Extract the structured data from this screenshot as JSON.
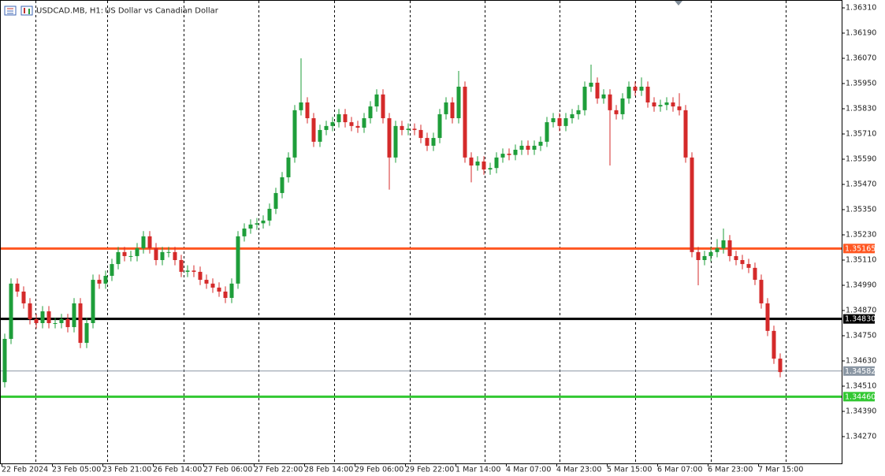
{
  "chart_data": {
    "type": "candlestick",
    "title": "USDCAD.MB, H1:",
    "subtitle": "US Dollar vs Canadian Dollar",
    "bull_color": "#1e9e3a",
    "bear_color": "#d42a2a",
    "ylim": [
      1.341425,
      1.363475
    ],
    "yticks": [
      {
        "value": 1.3631,
        "label": "1.36310"
      },
      {
        "value": 1.3619,
        "label": "1.36190"
      },
      {
        "value": 1.3607,
        "label": "1.36070"
      },
      {
        "value": 1.3595,
        "label": "1.35950"
      },
      {
        "value": 1.3583,
        "label": "1.35830"
      },
      {
        "value": 1.3571,
        "label": "1.35710"
      },
      {
        "value": 1.3559,
        "label": "1.35590"
      },
      {
        "value": 1.3547,
        "label": "1.35470"
      },
      {
        "value": 1.3535,
        "label": "1.35350"
      },
      {
        "value": 1.3523,
        "label": "1.35230"
      },
      {
        "value": 1.3511,
        "label": "1.35110"
      },
      {
        "value": 1.3499,
        "label": "1.34990"
      },
      {
        "value": 1.3487,
        "label": "1.34870"
      },
      {
        "value": 1.3475,
        "label": "1.34750"
      },
      {
        "value": 1.3463,
        "label": "1.34630"
      },
      {
        "value": 1.3451,
        "label": "1.34510"
      },
      {
        "value": 1.3439,
        "label": "1.34390"
      },
      {
        "value": 1.3427,
        "label": "1.34270"
      }
    ],
    "xticks": [
      {
        "value": 0,
        "label": "22 Feb 2024"
      },
      {
        "value": 8,
        "label": "23 Feb 05:00"
      },
      {
        "value": 16,
        "label": "23 Feb 21:00"
      },
      {
        "value": 24,
        "label": "26 Feb 14:00"
      },
      {
        "value": 32,
        "label": "27 Feb 06:00"
      },
      {
        "value": 40,
        "label": "27 Feb 22:00"
      },
      {
        "value": 48,
        "label": "28 Feb 14:00"
      },
      {
        "value": 56,
        "label": "29 Feb 06:00"
      },
      {
        "value": 64,
        "label": "29 Feb 22:00"
      },
      {
        "value": 72,
        "label": "1 Mar 14:00"
      },
      {
        "value": 80,
        "label": "4 Mar 07:00"
      },
      {
        "value": 88,
        "label": "4 Mar 23:00"
      },
      {
        "value": 96,
        "label": "5 Mar 15:00"
      },
      {
        "value": 104,
        "label": "6 Mar 07:00"
      },
      {
        "value": 112,
        "label": "6 Mar 23:00"
      },
      {
        "value": 120,
        "label": "7 Mar 15:00"
      }
    ],
    "xgrid": [
      5.4,
      16.75,
      28.9,
      40.75,
      52.75,
      64.75,
      76.6,
      88.5,
      100.5,
      112.5,
      124.4
    ],
    "levels": [
      {
        "value": 1.35165,
        "color": "#ff5722",
        "width": 3
      },
      {
        "value": 1.3483,
        "label": "1.34830",
        "color": "#000000",
        "width": 3
      },
      {
        "value": 1.34582,
        "color": "#8a96a3",
        "width": 1
      },
      {
        "value": 1.3446,
        "label": "1.34460",
        "color": "#32c832",
        "width": 3
      }
    ],
    "open": [
      1.34529,
      1.34735,
      1.34998,
      1.3496,
      1.34904,
      1.34829,
      1.3481,
      1.34866,
      1.3481,
      1.3481,
      1.34829,
      1.34791,
      1.34904,
      1.34716,
      1.3481,
      1.35016,
      1.34998,
      1.35035,
      1.35091,
      1.35148,
      1.35129,
      1.35129,
      1.35166,
      1.35223,
      1.35166,
      1.3511,
      1.35148,
      1.35148,
      1.3511,
      1.35054,
      1.3506,
      1.35054,
      1.35016,
      1.34998,
      1.34979,
      1.3496,
      1.3493,
      1.34998,
      1.35223,
      1.3526,
      1.35279,
      1.35285,
      1.35298,
      1.35354,
      1.35429,
      1.35504,
      1.35598,
      1.35823,
      1.3586,
      1.35785,
      1.35673,
      1.35729,
      1.35748,
      1.35766,
      1.35804,
      1.35766,
      1.35748,
      1.3574,
      1.35785,
      1.35841,
      1.35898,
      1.35785,
      1.35598,
      1.35748,
      1.35729,
      1.35735,
      1.35729,
      1.35691,
      1.35654,
      1.35691,
      1.35804,
      1.3586,
      1.35785,
      1.35935,
      1.35598,
      1.3556,
      1.35579,
      1.35541,
      1.35548,
      1.35598,
      1.35616,
      1.3561,
      1.35635,
      1.35654,
      1.35635,
      1.35654,
      1.35673,
      1.35766,
      1.35785,
      1.35748,
      1.35785,
      1.35804,
      1.35823,
      1.35935,
      1.35954,
      1.35879,
      1.35898,
      1.35823,
      1.35804,
      1.35879,
      1.35935,
      1.35916,
      1.35935,
      1.3586,
      1.35841,
      1.35848,
      1.3586,
      1.35841,
      1.35823,
      1.35598,
      1.35148,
      1.3511,
      1.35129,
      1.35148,
      1.35166,
      1.35204,
      1.35129,
      1.3511,
      1.35091,
      1.35073,
      1.35016,
      1.34904,
      1.34773,
      1.34641
    ],
    "high": [
      1.3476,
      1.35023,
      1.35023,
      1.34985,
      1.34929,
      1.34854,
      1.34891,
      1.34891,
      1.34835,
      1.34854,
      1.34854,
      1.34929,
      1.34929,
      1.34835,
      1.35041,
      1.35041,
      1.3506,
      1.35116,
      1.35173,
      1.35173,
      1.35154,
      1.35191,
      1.35248,
      1.35248,
      1.35191,
      1.35173,
      1.35173,
      1.35173,
      1.35135,
      1.35085,
      1.35085,
      1.35079,
      1.35041,
      1.35023,
      1.35004,
      1.34985,
      1.35023,
      1.35248,
      1.35285,
      1.35304,
      1.3531,
      1.35323,
      1.35379,
      1.35454,
      1.35529,
      1.35623,
      1.35848,
      1.3607,
      1.35885,
      1.3581,
      1.35754,
      1.35773,
      1.35791,
      1.35829,
      1.35829,
      1.35791,
      1.35773,
      1.3581,
      1.35866,
      1.35923,
      1.35923,
      1.3581,
      1.35773,
      1.35773,
      1.3576,
      1.3576,
      1.35754,
      1.35716,
      1.35716,
      1.35829,
      1.35885,
      1.35885,
      1.3601,
      1.3596,
      1.35623,
      1.35604,
      1.35604,
      1.35573,
      1.35623,
      1.35641,
      1.35641,
      1.3566,
      1.35679,
      1.35679,
      1.35679,
      1.35698,
      1.35791,
      1.3581,
      1.3581,
      1.3581,
      1.35829,
      1.35848,
      1.3596,
      1.3604,
      1.35979,
      1.35923,
      1.35923,
      1.35848,
      1.35904,
      1.3596,
      1.3596,
      1.35979,
      1.3596,
      1.35885,
      1.35873,
      1.35885,
      1.35885,
      1.35904,
      1.35848,
      1.35623,
      1.35173,
      1.35154,
      1.35173,
      1.3521,
      1.3526,
      1.35229,
      1.35154,
      1.35135,
      1.35116,
      1.35098,
      1.35041,
      1.34929,
      1.34798,
      1.34666
    ],
    "low": [
      1.34504,
      1.3471,
      1.34935,
      1.34879,
      1.34804,
      1.34785,
      1.34785,
      1.34785,
      1.34785,
      1.34785,
      1.34766,
      1.34766,
      1.34691,
      1.34691,
      1.34785,
      1.34973,
      1.34973,
      1.3501,
      1.35066,
      1.35104,
      1.35104,
      1.35104,
      1.35141,
      1.35141,
      1.35085,
      1.35085,
      1.35123,
      1.35085,
      1.35029,
      1.35029,
      1.35029,
      1.34991,
      1.34973,
      1.34954,
      1.34935,
      1.34905,
      1.34905,
      1.34973,
      1.35198,
      1.35235,
      1.35254,
      1.3526,
      1.35273,
      1.35329,
      1.35404,
      1.35479,
      1.35573,
      1.35798,
      1.3576,
      1.35648,
      1.35648,
      1.35704,
      1.35723,
      1.35741,
      1.35741,
      1.35723,
      1.35715,
      1.35715,
      1.3576,
      1.35816,
      1.3576,
      1.35445,
      1.35573,
      1.35704,
      1.35704,
      1.35704,
      1.35666,
      1.35629,
      1.35629,
      1.35666,
      1.35779,
      1.3576,
      1.3576,
      1.35573,
      1.3548,
      1.35535,
      1.35516,
      1.35516,
      1.35523,
      1.35573,
      1.35585,
      1.35585,
      1.3561,
      1.3561,
      1.3561,
      1.35629,
      1.35648,
      1.35741,
      1.35723,
      1.35723,
      1.3576,
      1.35779,
      1.35798,
      1.3591,
      1.35854,
      1.35854,
      1.3556,
      1.35779,
      1.35779,
      1.35854,
      1.35891,
      1.35891,
      1.35835,
      1.35816,
      1.35816,
      1.35823,
      1.35816,
      1.35798,
      1.35573,
      1.35123,
      1.3499,
      1.35085,
      1.35104,
      1.35123,
      1.35141,
      1.35104,
      1.35085,
      1.35066,
      1.35048,
      1.34991,
      1.34879,
      1.34748,
      1.34616,
      1.34552
    ],
    "close": [
      1.34735,
      1.34998,
      1.3496,
      1.34904,
      1.34829,
      1.3481,
      1.34866,
      1.3481,
      1.3481,
      1.34829,
      1.34791,
      1.34904,
      1.34716,
      1.3481,
      1.35016,
      1.34998,
      1.35035,
      1.35091,
      1.35148,
      1.35129,
      1.35129,
      1.35166,
      1.35223,
      1.35166,
      1.3511,
      1.35148,
      1.35148,
      1.3511,
      1.35054,
      1.3506,
      1.35054,
      1.35016,
      1.34998,
      1.34979,
      1.3496,
      1.3493,
      1.34998,
      1.35223,
      1.3526,
      1.35279,
      1.35285,
      1.35298,
      1.35354,
      1.35429,
      1.35504,
      1.35598,
      1.35823,
      1.3586,
      1.35785,
      1.35673,
      1.35729,
      1.35748,
      1.35766,
      1.35804,
      1.35766,
      1.35748,
      1.3574,
      1.35785,
      1.35841,
      1.35898,
      1.35785,
      1.35598,
      1.35748,
      1.35729,
      1.35735,
      1.35729,
      1.35691,
      1.35654,
      1.35691,
      1.35804,
      1.3586,
      1.35785,
      1.35935,
      1.35598,
      1.3556,
      1.35579,
      1.35541,
      1.35548,
      1.35598,
      1.35616,
      1.3561,
      1.35635,
      1.35654,
      1.35635,
      1.35654,
      1.35673,
      1.35766,
      1.35785,
      1.35748,
      1.35785,
      1.35804,
      1.35823,
      1.35935,
      1.35954,
      1.35879,
      1.35898,
      1.35823,
      1.35804,
      1.35879,
      1.35935,
      1.35916,
      1.35935,
      1.3586,
      1.35841,
      1.35848,
      1.3586,
      1.35841,
      1.35823,
      1.35598,
      1.35148,
      1.3511,
      1.35129,
      1.35148,
      1.35166,
      1.35204,
      1.35129,
      1.3511,
      1.35091,
      1.35073,
      1.35016,
      1.34904,
      1.34773,
      1.34641,
      1.34577
    ]
  }
}
